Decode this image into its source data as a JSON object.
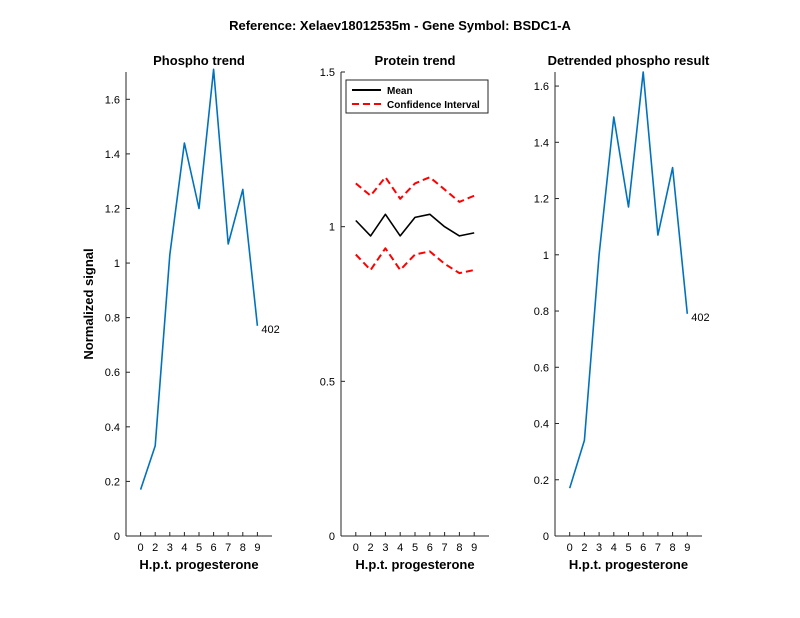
{
  "figure": {
    "suptitle": "Reference:  Xelaev18012535m - Gene Symbol:  BSDC1-A"
  },
  "chart_data": [
    {
      "type": "line",
      "title": "Phospho trend",
      "xlabel": "H.p.t. progesterone",
      "ylabel": "Normalized signal",
      "categories": [
        "0",
        "2",
        "3",
        "4",
        "5",
        "6",
        "7",
        "8",
        "9"
      ],
      "ylim": [
        0,
        1.7
      ],
      "yticks": [
        0,
        0.2,
        0.4,
        0.6,
        0.8,
        1,
        1.2,
        1.4,
        1.6
      ],
      "ytick_labels": [
        "0",
        "0.2",
        "0.4",
        "0.6",
        "0.8",
        "1",
        "1.2",
        "1.4",
        "1.6"
      ],
      "series": [
        {
          "color": "#0072BD",
          "style": "solid",
          "values": [
            0.17,
            0.33,
            1.03,
            1.44,
            1.2,
            1.71,
            1.07,
            1.27,
            0.77
          ]
        }
      ],
      "annotation": "402"
    },
    {
      "type": "line",
      "title": "Protein trend",
      "xlabel": "H.p.t. progesterone",
      "ylabel": "",
      "categories": [
        "0",
        "2",
        "3",
        "4",
        "5",
        "6",
        "7",
        "8",
        "9"
      ],
      "ylim": [
        0,
        1.5
      ],
      "yticks": [
        0,
        0.5,
        1,
        1.5
      ],
      "ytick_labels": [
        "0",
        "0.5",
        "1",
        "1.5"
      ],
      "series": [
        {
          "name": "Mean",
          "color": "#000000",
          "style": "solid",
          "values": [
            1.02,
            0.97,
            1.04,
            0.97,
            1.03,
            1.04,
            1.0,
            0.97,
            0.98
          ]
        },
        {
          "name": "Confidence Interval",
          "color": "#ff0000",
          "style": "dashed",
          "values": [
            1.14,
            1.1,
            1.16,
            1.09,
            1.14,
            1.16,
            1.12,
            1.08,
            1.1
          ]
        },
        {
          "color": "#ff0000",
          "style": "dashed",
          "values": [
            0.91,
            0.86,
            0.93,
            0.86,
            0.91,
            0.92,
            0.88,
            0.85,
            0.86
          ]
        }
      ],
      "legend": {
        "position": "top-left",
        "entries": [
          "Mean",
          "Confidence Interval"
        ]
      }
    },
    {
      "type": "line",
      "title": "Detrended phospho result",
      "xlabel": "H.p.t. progesterone",
      "ylabel": "",
      "categories": [
        "0",
        "2",
        "3",
        "4",
        "5",
        "6",
        "7",
        "8",
        "9"
      ],
      "ylim": [
        0,
        1.65
      ],
      "yticks": [
        0,
        0.2,
        0.4,
        0.6,
        0.8,
        1,
        1.2,
        1.4,
        1.6
      ],
      "ytick_labels": [
        "0",
        "0.2",
        "0.4",
        "0.6",
        "0.8",
        "1",
        "1.2",
        "1.4",
        "1.6"
      ],
      "series": [
        {
          "color": "#0072BD",
          "style": "solid",
          "values": [
            0.17,
            0.34,
            1.0,
            1.49,
            1.17,
            1.65,
            1.07,
            1.31,
            0.79
          ]
        }
      ],
      "annotation": "402"
    }
  ]
}
